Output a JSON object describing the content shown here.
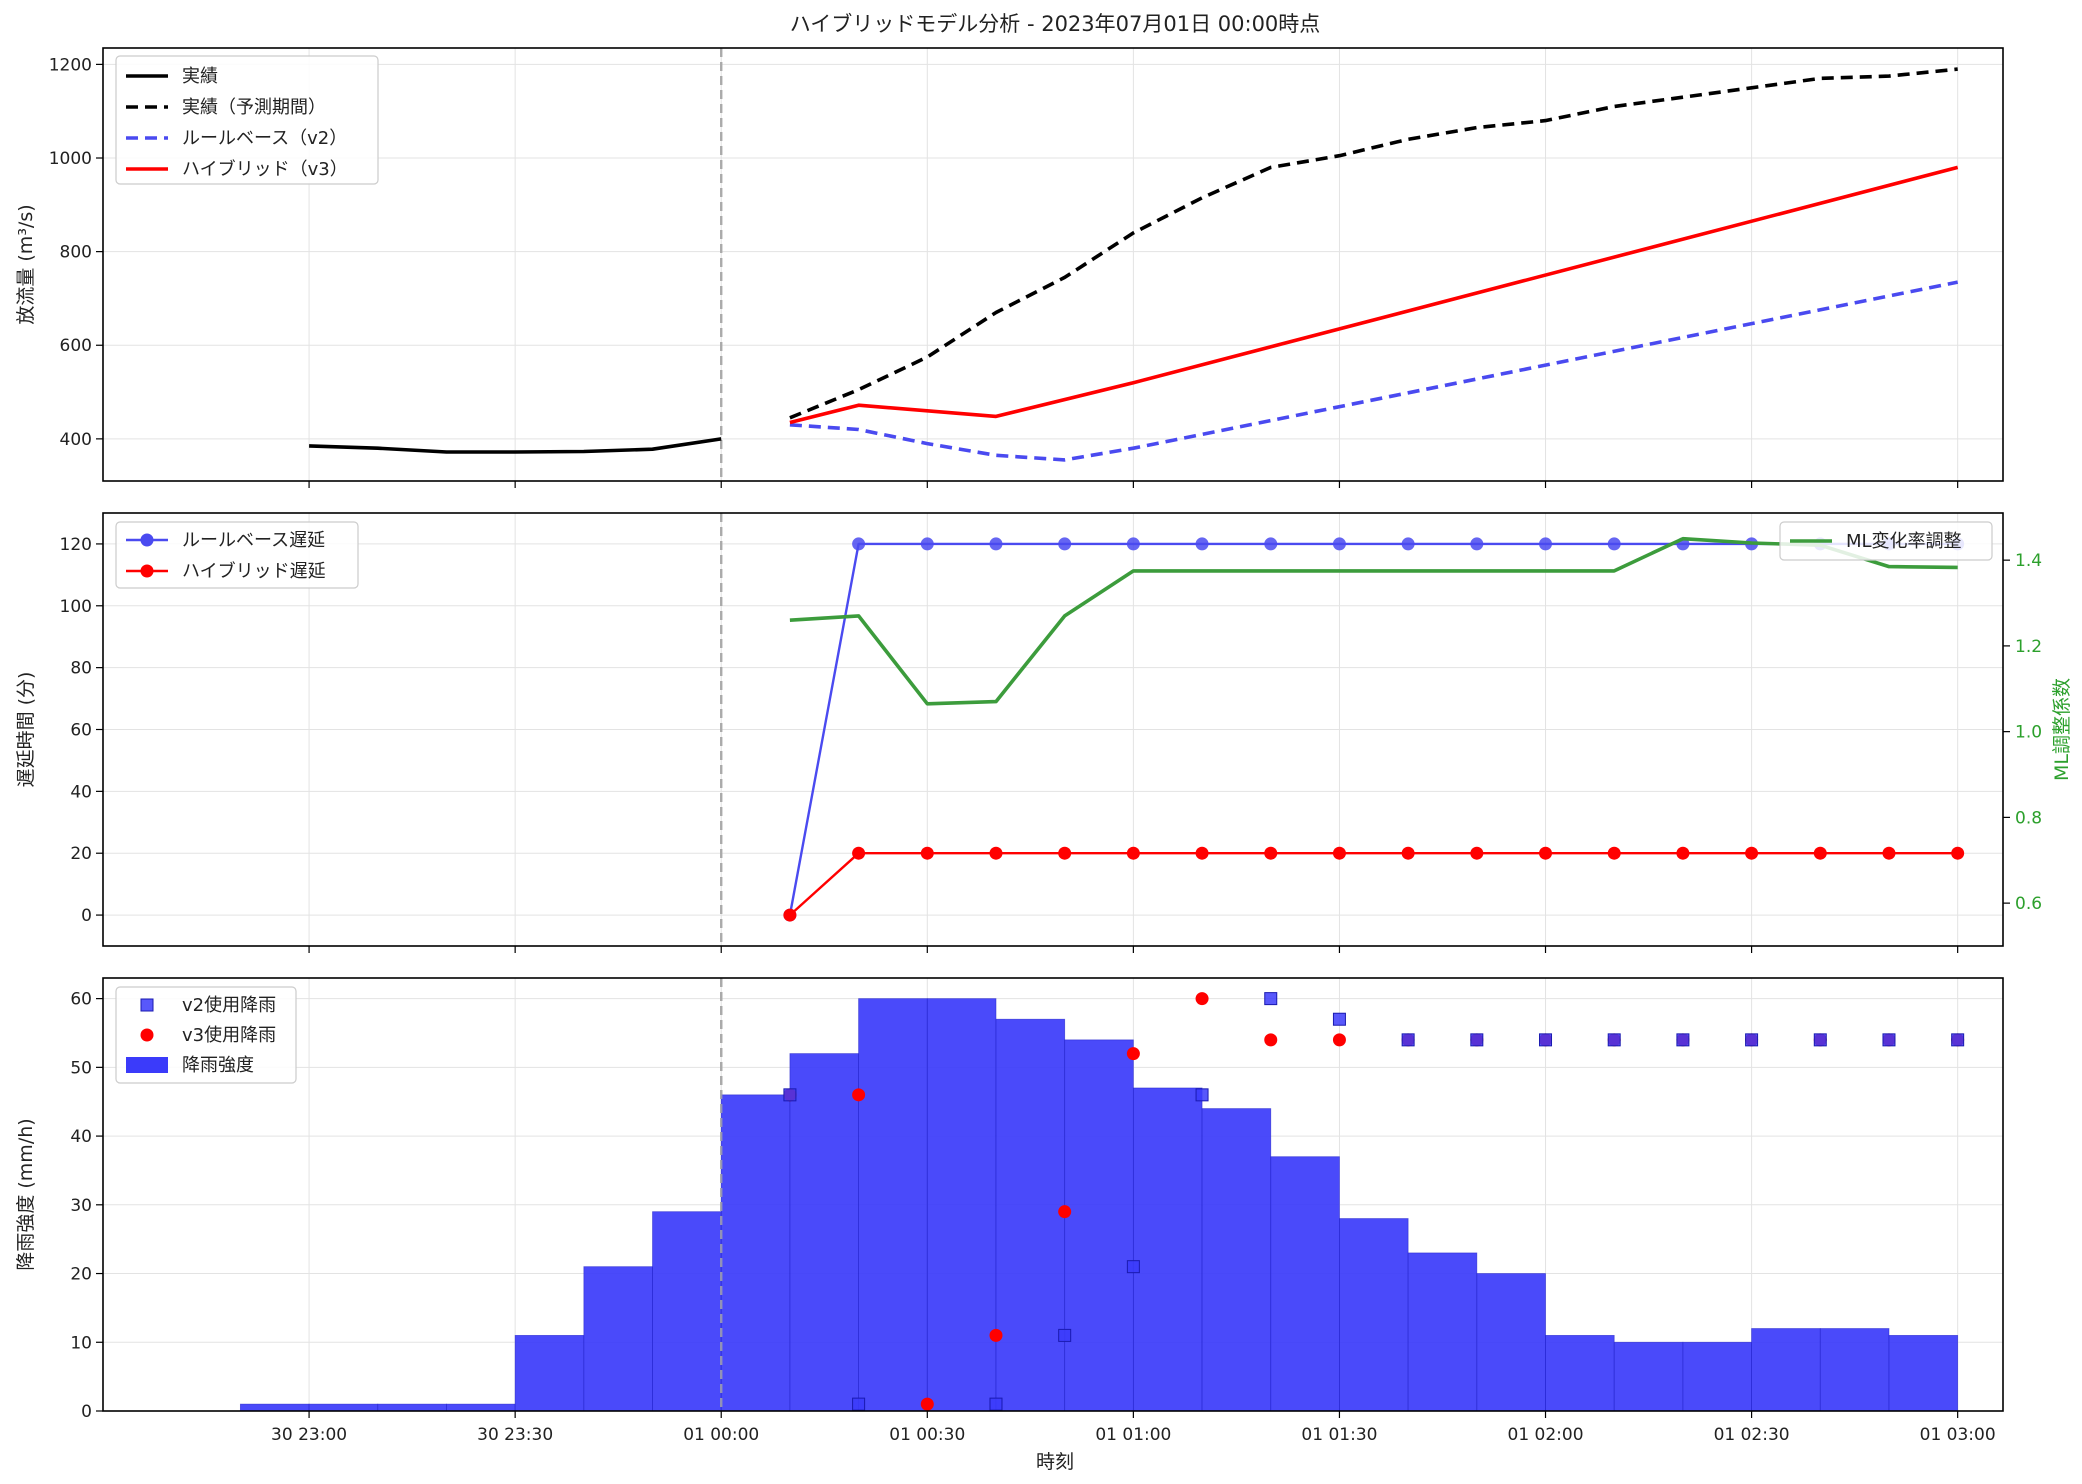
{
  "title": "ハイブリッドモデル分析 - 2023年07月01日 00:00時点",
  "x_tick_labels": [
    "30 23:00",
    "30 23:30",
    "01 00:00",
    "01 00:30",
    "01 01:00",
    "01 01:30",
    "01 02:00",
    "01 02:30",
    "01 03:00"
  ],
  "xlabel": "時刻",
  "colors": {
    "actual": "#000000",
    "rule": "#4a4af0",
    "hybrid": "#ff0000",
    "ml": "#3c9c3c",
    "rain": "#3b3bfa",
    "vline": "#aaaaaa"
  },
  "chart_data": [
    {
      "type": "line",
      "ylabel": "放流量 (m³/s)",
      "ylim": [
        310,
        1235
      ],
      "y_ticks": [
        400,
        600,
        800,
        1000,
        1200
      ],
      "grid": true,
      "legend_position": "top-left",
      "x_unit": "minutes relative to 01 00:00",
      "vline_x": 0,
      "series": [
        {
          "name": "実績",
          "style": "solid",
          "color": "#000000",
          "x": [
            -60,
            -50,
            -40,
            -30,
            -20,
            -10,
            0
          ],
          "y": [
            385,
            380,
            372,
            372,
            373,
            378,
            400
          ]
        },
        {
          "name": "実績（予測期間）",
          "style": "dashed",
          "color": "#000000",
          "x": [
            10,
            20,
            30,
            40,
            50,
            60,
            70,
            80,
            90,
            100,
            110,
            120,
            130,
            140,
            150,
            160,
            170,
            180
          ],
          "y": [
            445,
            505,
            575,
            670,
            745,
            840,
            915,
            980,
            1005,
            1040,
            1065,
            1080,
            1110,
            1130,
            1150,
            1170,
            1175,
            1190
          ]
        },
        {
          "name": "ルールベース（v2）",
          "style": "dashed",
          "color": "#4a4af0",
          "x": [
            10,
            20,
            30,
            40,
            50,
            60,
            180
          ],
          "y": [
            430,
            420,
            390,
            365,
            355,
            380,
            735
          ]
        },
        {
          "name": "ハイブリッド（v3）",
          "style": "solid",
          "color": "#ff0000",
          "x": [
            10,
            20,
            40,
            60,
            180
          ],
          "y": [
            435,
            472,
            448,
            520,
            980
          ]
        }
      ]
    },
    {
      "type": "line",
      "ylabel": "遅延時間 (分)",
      "y2label": "ML調整係数",
      "ylim": [
        -10,
        130
      ],
      "y_ticks": [
        0,
        20,
        40,
        60,
        80,
        100,
        120
      ],
      "y2lim": [
        0.5,
        1.51
      ],
      "y2_ticks": [
        0.6,
        0.8,
        1.0,
        1.2,
        1.4
      ],
      "grid": true,
      "legend_position": "top-left",
      "legend2_position": "top-right",
      "vline_x": 0,
      "series": [
        {
          "name": "ルールベース遅延",
          "axis": "left",
          "marker": "circle",
          "color": "#4a4af0",
          "x": [
            10,
            20,
            30,
            40,
            50,
            60,
            70,
            80,
            90,
            100,
            110,
            120,
            130,
            140,
            150,
            160,
            170,
            180
          ],
          "y": [
            0,
            120,
            120,
            120,
            120,
            120,
            120,
            120,
            120,
            120,
            120,
            120,
            120,
            120,
            120,
            120,
            120,
            120
          ]
        },
        {
          "name": "ハイブリッド遅延",
          "axis": "left",
          "marker": "circle",
          "color": "#ff0000",
          "x": [
            10,
            20,
            30,
            40,
            50,
            60,
            70,
            80,
            90,
            100,
            110,
            120,
            130,
            140,
            150,
            160,
            170,
            180
          ],
          "y": [
            0,
            20,
            20,
            20,
            20,
            20,
            20,
            20,
            20,
            20,
            20,
            20,
            20,
            20,
            20,
            20,
            20,
            20
          ]
        },
        {
          "name": "ML変化率調整",
          "axis": "right",
          "color": "#3c9c3c",
          "x": [
            10,
            20,
            30,
            40,
            50,
            60,
            70,
            80,
            90,
            100,
            110,
            120,
            130,
            140,
            150,
            160,
            170,
            180
          ],
          "y": [
            1.26,
            1.27,
            1.065,
            1.07,
            1.27,
            1.375,
            1.375,
            1.375,
            1.375,
            1.375,
            1.375,
            1.375,
            1.375,
            1.45,
            1.44,
            1.435,
            1.385,
            1.383
          ]
        }
      ]
    },
    {
      "type": "bar",
      "ylabel": "降雨強度 (mm/h)",
      "ylim": [
        0,
        63
      ],
      "y_ticks": [
        0,
        10,
        20,
        30,
        40,
        50,
        60
      ],
      "grid": true,
      "legend_position": "top-left",
      "vline_x": 0,
      "bar_width_minutes": 10,
      "bar_series": {
        "name": "降雨強度",
        "color": "#3b3bfa",
        "x": [
          -65,
          -55,
          -45,
          -35,
          -25,
          -15,
          -5,
          5,
          15,
          25,
          35,
          45,
          55,
          65,
          75,
          85,
          95,
          105,
          115,
          125,
          135,
          145,
          155,
          165,
          175
        ],
        "values": [
          1,
          1,
          1,
          1,
          11,
          21,
          29,
          46,
          52,
          60,
          60,
          57,
          54,
          47,
          44,
          37,
          28,
          23,
          20,
          11,
          10,
          10,
          12,
          12,
          11
        ]
      },
      "scatter_series": [
        {
          "name": "v2使用降雨",
          "marker": "square",
          "color": "#3b3bfa",
          "x": [
            10,
            20,
            40,
            50,
            60,
            70,
            80,
            90,
            100,
            110,
            120,
            130,
            140,
            150,
            160,
            170,
            180
          ],
          "y": [
            46,
            1,
            1,
            11,
            21,
            46,
            60,
            57,
            54,
            54,
            54,
            54,
            54,
            54,
            54,
            54,
            54
          ]
        },
        {
          "name": "v3使用降雨",
          "marker": "circle",
          "color": "#ff0000",
          "x": [
            10,
            20,
            30,
            40,
            50,
            60,
            70,
            80,
            90,
            100,
            110,
            120,
            130,
            140,
            150,
            160,
            170,
            180
          ],
          "y": [
            46,
            46,
            1,
            11,
            29,
            52,
            60,
            54,
            54,
            54,
            54,
            54,
            54,
            54,
            54,
            54,
            54,
            54
          ]
        }
      ]
    }
  ]
}
